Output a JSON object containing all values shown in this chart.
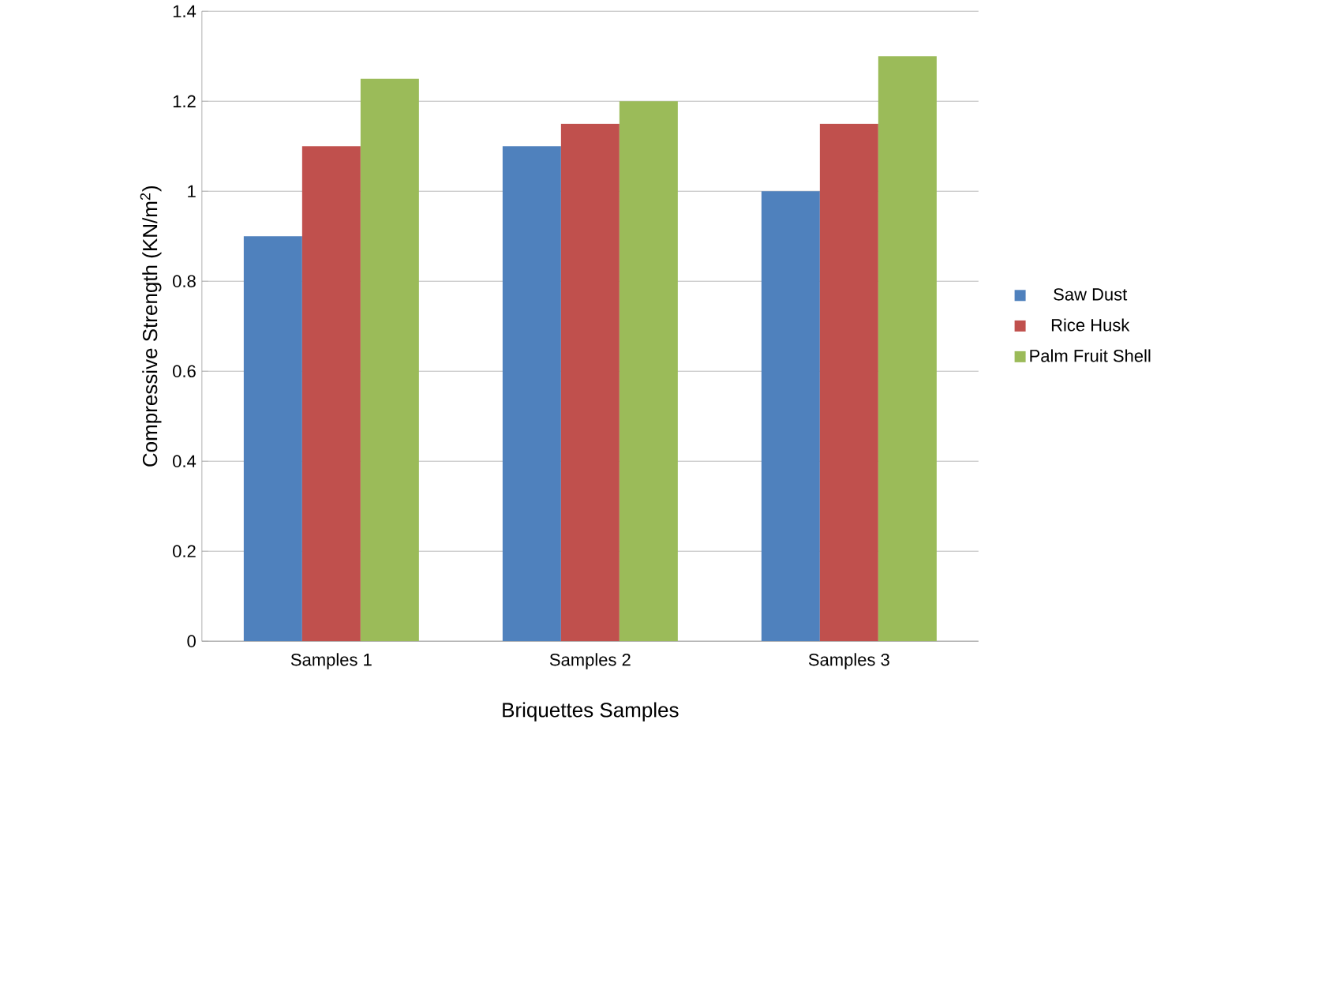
{
  "chart_data": {
    "type": "bar",
    "xlabel": "Briquettes Samples",
    "ylabel": "Compressive Strength (KN/m$^{2}$)",
    "categories": [
      "Samples 1",
      "Samples 2",
      "Samples 3"
    ],
    "series": [
      {
        "name": "Saw Dust",
        "color": "#4f81bd",
        "values": [
          0.9,
          1.1,
          1.0
        ]
      },
      {
        "name": "Rice Husk",
        "color": "#c0504d",
        "values": [
          1.1,
          1.15,
          1.15
        ]
      },
      {
        "name": "Palm Fruit Shell",
        "color": "#9bbb59",
        "values": [
          1.25,
          1.2,
          1.3
        ]
      }
    ],
    "ylim": [
      0,
      1.4
    ],
    "yticks": [
      0,
      0.2,
      0.4,
      0.6,
      0.8,
      1,
      1.2,
      1.4
    ],
    "grid": "y",
    "legend": "right"
  }
}
